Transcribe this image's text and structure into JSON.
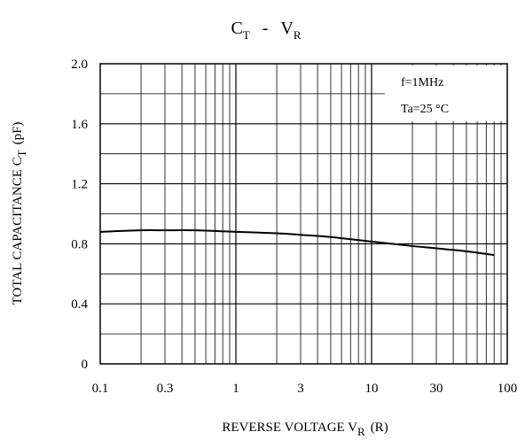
{
  "chart_data": {
    "type": "line",
    "title": {
      "main1": "C",
      "sub1": "T",
      "sep": "-",
      "main2": "V",
      "sub2": "R"
    },
    "xlabel": {
      "main": "REVERSE VOLTAGE V",
      "sub": "R",
      "suffix": "(R)"
    },
    "ylabel": {
      "main": "TOTAL CAPACITANCE C",
      "sub": "T",
      "suffix": "(pF)"
    },
    "x_scale": "log",
    "xlim": [
      0.1,
      100
    ],
    "ylim": [
      0,
      2.0
    ],
    "x_tick_labels": [
      "0.1",
      "0.3",
      "1",
      "3",
      "10",
      "30",
      "100"
    ],
    "y_tick_labels": [
      "0",
      "0.4",
      "0.8",
      "1.2",
      "1.6",
      "2.0"
    ],
    "grid": true,
    "annotations": [
      "f=1MHz",
      "Ta=25 °C"
    ],
    "series": [
      {
        "x": [
          0.1,
          0.2,
          0.3,
          0.5,
          1,
          2,
          3,
          5,
          10,
          20,
          30,
          50,
          80
        ],
        "y": [
          0.88,
          0.89,
          0.89,
          0.89,
          0.88,
          0.87,
          0.86,
          0.845,
          0.815,
          0.785,
          0.77,
          0.75,
          0.725
        ]
      }
    ]
  },
  "colors": {
    "line": "#000000",
    "grid": "#000000",
    "background": "#ffffff"
  }
}
